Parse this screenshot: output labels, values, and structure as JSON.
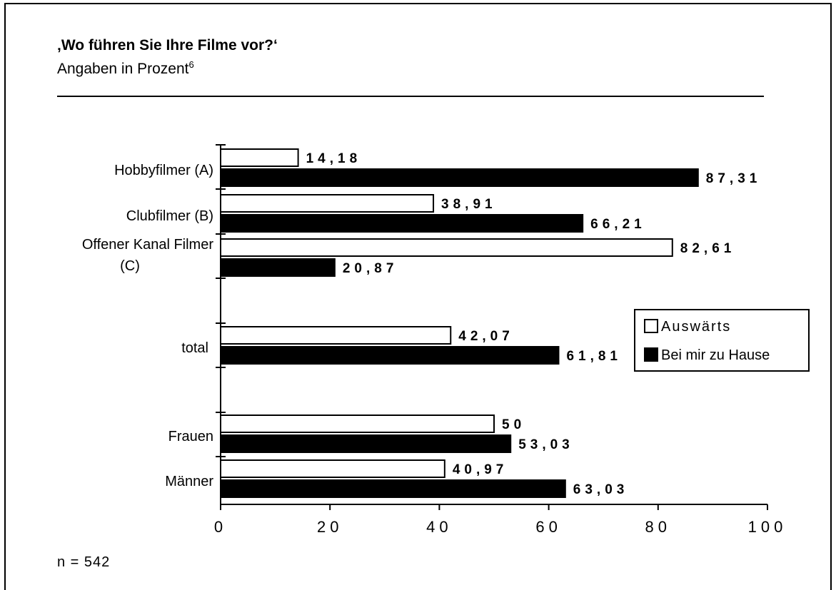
{
  "header": {
    "title": "‚Wo führen Sie Ihre Filme vor?‘",
    "subtitle": "Angaben in Prozent",
    "footnote_mark": "6"
  },
  "footer": {
    "sample": "n = 542"
  },
  "chart_data": {
    "type": "bar",
    "orientation": "horizontal",
    "categories": [
      "Hobbyfilmer  (A)",
      "Clubfilmer  (B)",
      "Offener Kanal Filmer (C)",
      "total",
      "Frauen",
      "Männer"
    ],
    "series": [
      {
        "name": "Auswärts",
        "values": [
          14.18,
          38.91,
          82.61,
          42.07,
          50,
          40.97
        ],
        "labels": [
          "14,18",
          "38,91",
          "82,61",
          "42,07",
          "50",
          "40,97"
        ],
        "color": "#ffffff"
      },
      {
        "name": "Bei mir zu Hause",
        "values": [
          87.31,
          66.21,
          20.87,
          61.81,
          53.03,
          63.03
        ],
        "labels": [
          "87,31",
          "66,21",
          "20,87",
          "61,81",
          "53,03",
          "63,03"
        ],
        "color": "#000000"
      }
    ],
    "xlim": [
      0,
      100
    ],
    "xticks": [
      "0",
      "20",
      "40",
      "60",
      "80",
      "100"
    ],
    "grid": false,
    "legend": "right"
  }
}
